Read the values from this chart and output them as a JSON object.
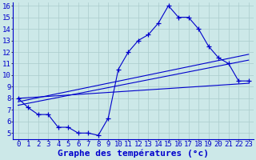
{
  "bg_color": "#cce8e8",
  "grid_color": "#aacccc",
  "line_color": "#0000cc",
  "marker": "+",
  "marker_size": 4,
  "xlabel": "Graphe des températures (°c)",
  "xlabel_fontsize": 8,
  "xlim": [
    -0.5,
    23.5
  ],
  "ylim": [
    4.5,
    16.3
  ],
  "xticks": [
    0,
    1,
    2,
    3,
    4,
    5,
    6,
    7,
    8,
    9,
    10,
    11,
    12,
    13,
    14,
    15,
    16,
    17,
    18,
    19,
    20,
    21,
    22,
    23
  ],
  "yticks": [
    5,
    6,
    7,
    8,
    9,
    10,
    11,
    12,
    13,
    14,
    15,
    16
  ],
  "tick_fontsize": 6.5,
  "series": {
    "actual": {
      "x": [
        0,
        1,
        2,
        3,
        4,
        5,
        6,
        7,
        8,
        9,
        10,
        11,
        12,
        13,
        14,
        15,
        16,
        17,
        18,
        19,
        20,
        21,
        22,
        23
      ],
      "y": [
        8.0,
        7.2,
        6.6,
        6.6,
        5.5,
        5.5,
        5.0,
        5.0,
        4.8,
        6.3,
        10.5,
        12.0,
        13.0,
        13.5,
        14.5,
        16.0,
        15.0,
        15.0,
        14.0,
        12.5,
        11.5,
        11.0,
        9.5,
        9.5
      ]
    },
    "trend1": {
      "x": [
        0,
        23
      ],
      "y": [
        8.0,
        9.3
      ]
    },
    "trend2": {
      "x": [
        0,
        23
      ],
      "y": [
        7.7,
        11.8
      ]
    },
    "trend3": {
      "x": [
        0,
        23
      ],
      "y": [
        7.4,
        11.3
      ]
    }
  }
}
